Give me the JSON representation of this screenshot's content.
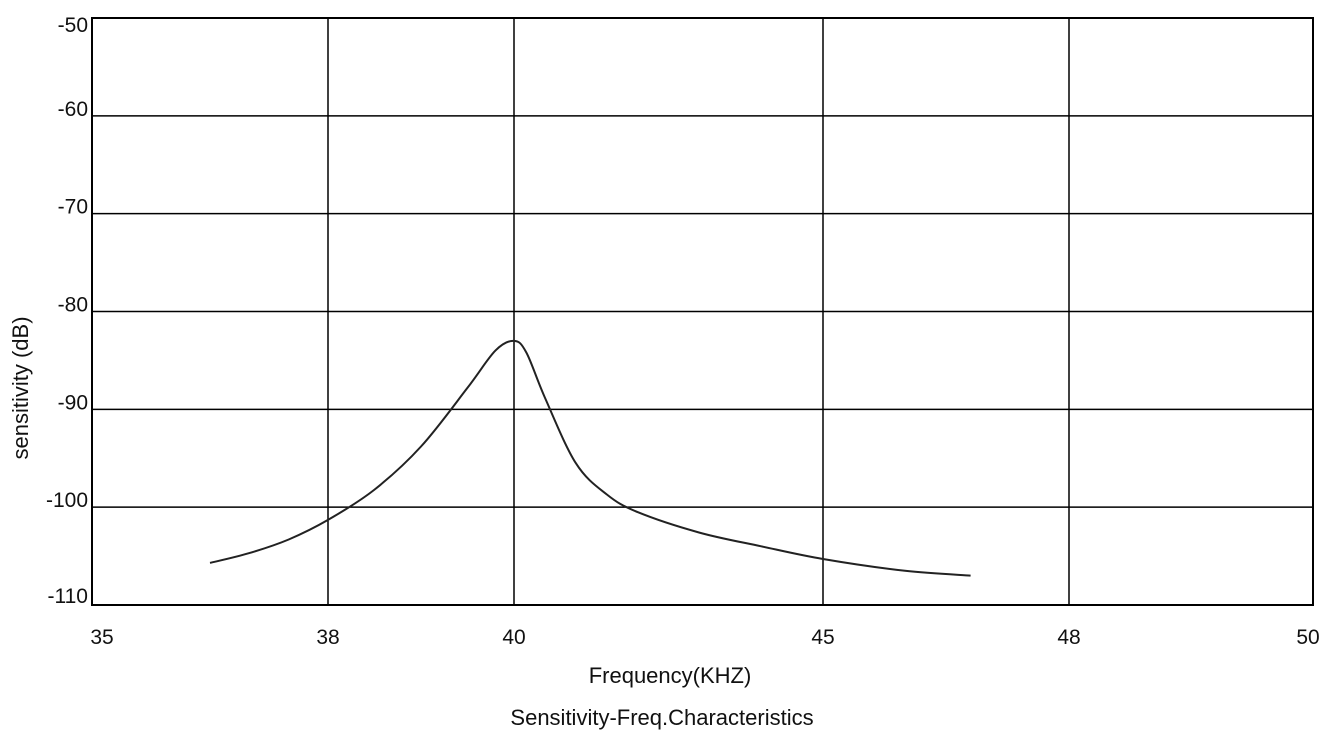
{
  "chart_data": {
    "type": "line",
    "title": "Sensitivity-Freq.Characteristics",
    "xlabel": "Frequency(KHZ)",
    "ylabel": "sensitivity (dB)",
    "x_ticks": [
      "35",
      "38",
      "40",
      "45",
      "48",
      "50"
    ],
    "y_ticks": [
      "-50",
      "-60",
      "-70",
      "-80",
      "-90",
      "-100",
      "-110"
    ],
    "y_values": [
      -50,
      -60,
      -70,
      -80,
      -90,
      -100,
      -110
    ],
    "ylim": [
      -110,
      -50
    ],
    "grid": true,
    "series": [
      {
        "x": [
          36.5,
          37.0,
          37.5,
          38.0,
          38.5,
          39.0,
          39.5,
          39.8,
          40.0,
          40.2,
          40.5,
          41.0,
          41.5,
          42.0,
          43.0,
          44.0,
          45.0,
          46.0,
          46.8
        ],
        "y": [
          -105.7,
          -104.7,
          -103.3,
          -101.3,
          -98.2,
          -93.8,
          -87.8,
          -84.0,
          -83.0,
          -84.2,
          -88.8,
          -95.5,
          -98.7,
          -100.5,
          -102.6,
          -104.0,
          -105.3,
          -106.5,
          -107.0
        ]
      }
    ]
  }
}
